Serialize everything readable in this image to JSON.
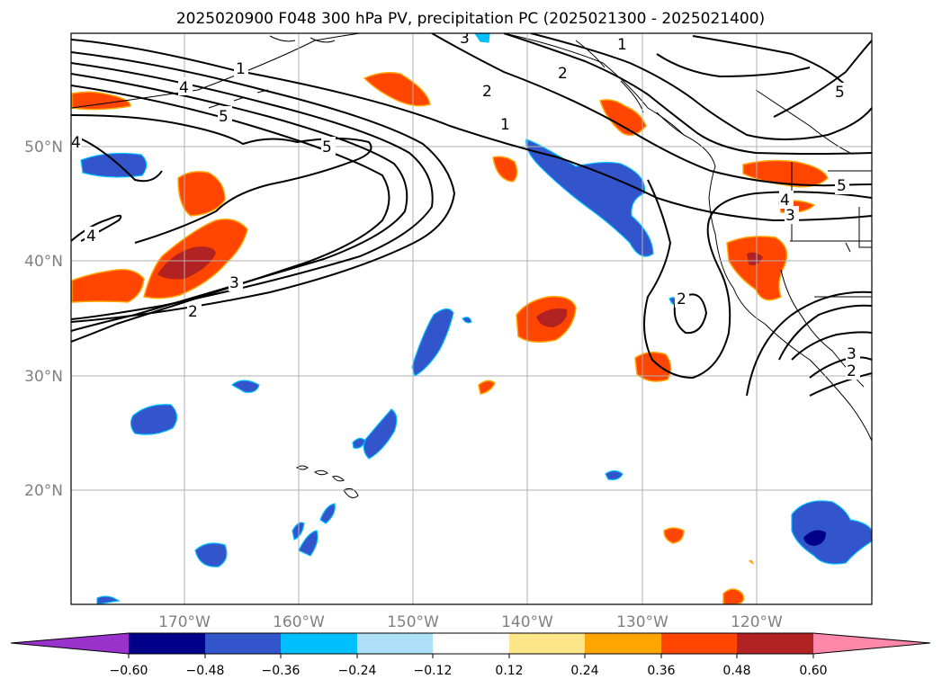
{
  "title": "2025020900 F048 300 hPa PV, precipitation PC (2025021300 - 2025021400)",
  "map": {
    "lat_labels": [
      "50°N",
      "40°N",
      "30°N",
      "20°N"
    ],
    "lon_labels": [
      "170°W",
      "160°W",
      "150°W",
      "140°W",
      "130°W",
      "120°W"
    ],
    "gridlines": true
  },
  "pv_contour_labels": [
    "1",
    "2",
    "3",
    "4",
    "5"
  ],
  "colorbar": {
    "orientation": "horizontal",
    "extend": "both",
    "tick_labels": [
      "−0.60",
      "−0.48",
      "−0.36",
      "−0.24",
      "−0.12",
      "0.12",
      "0.24",
      "0.36",
      "0.48",
      "0.60"
    ],
    "colors": [
      "#9933cc",
      "#00008b",
      "#3355cc",
      "#00bfff",
      "#aee0fa",
      "#ffffff",
      "#fde68a",
      "#ffa500",
      "#ff4500",
      "#b22222",
      "#ff88aa"
    ]
  }
}
